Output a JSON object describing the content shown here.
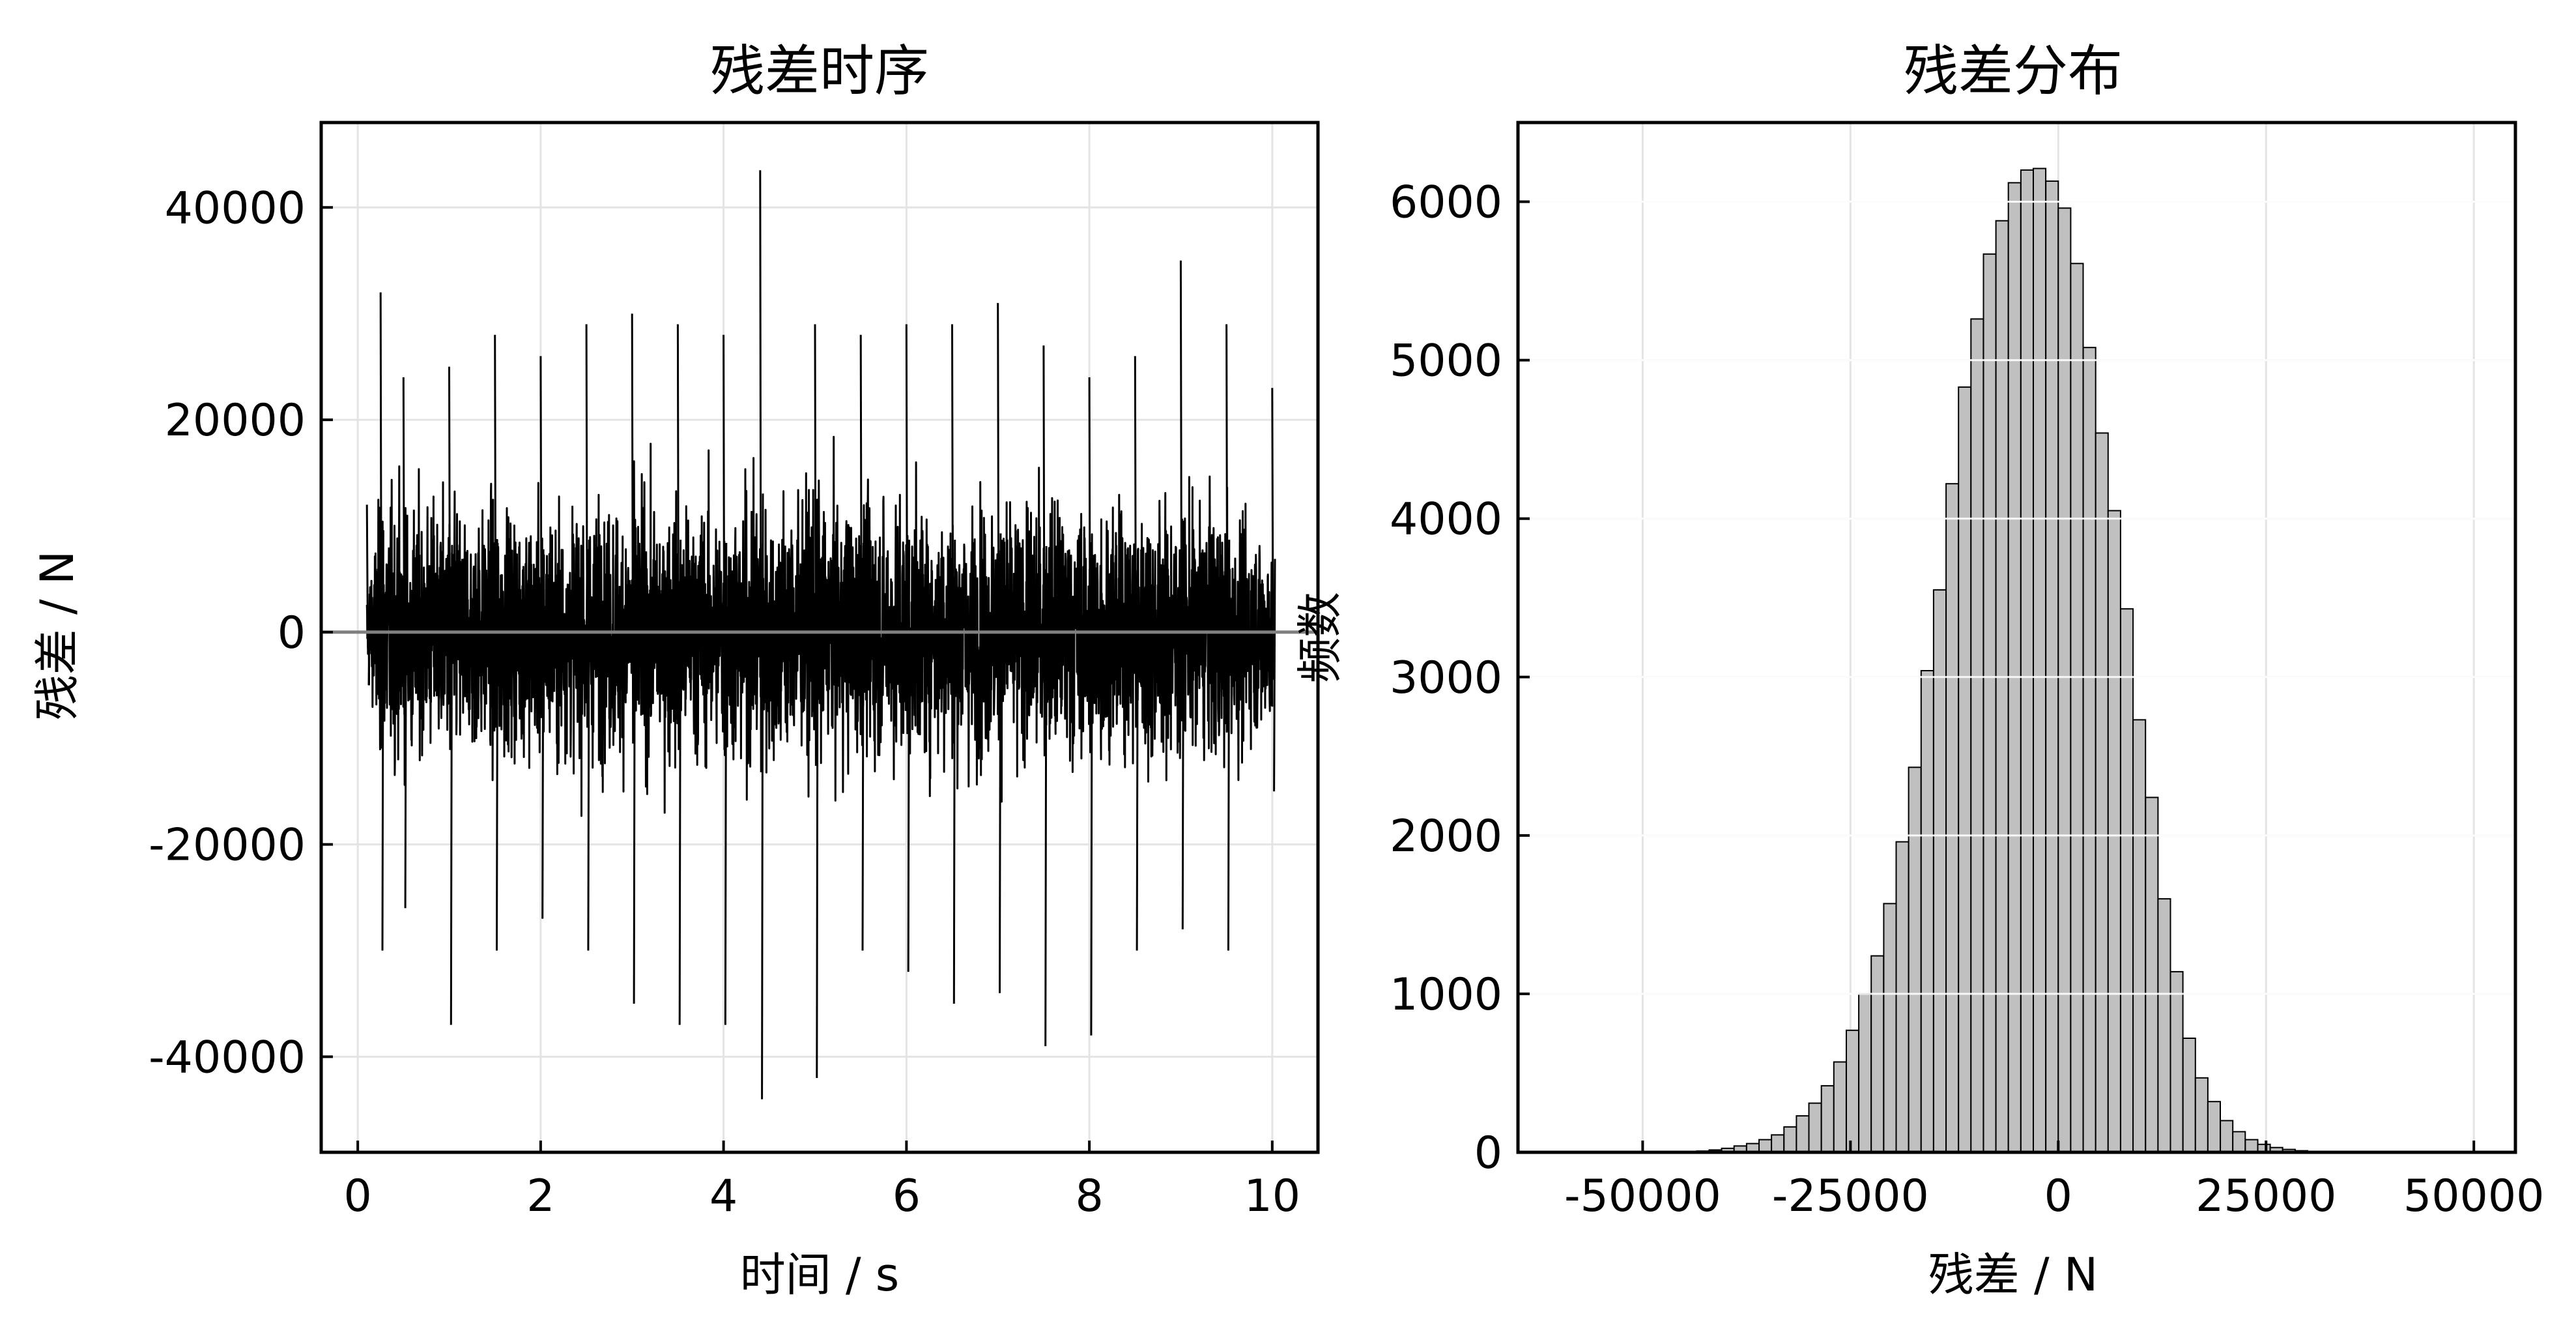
{
  "chart_data": [
    {
      "type": "line",
      "title": "残差时序",
      "xlabel": "时间 / s",
      "ylabel": "残差 / N",
      "xlim": [
        -0.4,
        10.5
      ],
      "ylim": [
        -49000,
        48000
      ],
      "xticks": [
        0,
        2,
        4,
        6,
        8,
        10
      ],
      "xtick_labels": [
        "0",
        "2",
        "4",
        "6",
        "8",
        "10"
      ],
      "yticks": [
        40000,
        20000,
        0,
        -20000,
        -40000
      ],
      "ytick_labels": [
        "40000",
        "20000",
        "0",
        "-20000",
        "-40000"
      ],
      "grid": true,
      "reference_line": 0,
      "line_color": "#000000",
      "reference_color": "#808080",
      "series": [
        {
          "x_start": 0.1,
          "x_end": 10.0,
          "envelope_x": [
            0.1,
            0.25,
            0.5,
            1,
            1.5,
            2,
            2.5,
            3,
            3.5,
            4,
            4.4,
            5,
            5.5,
            6,
            6.5,
            7,
            7.5,
            8,
            8.5,
            9,
            9.5,
            10
          ],
          "envelope_upper": [
            12000,
            32000,
            24000,
            25000,
            28000,
            26000,
            29000,
            30000,
            29000,
            28000,
            43500,
            29000,
            28000,
            29000,
            29000,
            31000,
            27000,
            24000,
            26000,
            35000,
            29000,
            23000
          ],
          "envelope_lower": [
            -5000,
            -30000,
            -26000,
            -37000,
            -30000,
            -27000,
            -30000,
            -35000,
            -37000,
            -37000,
            -44000,
            -42000,
            -30000,
            -32000,
            -35000,
            -34000,
            -39000,
            -38000,
            -30000,
            -28000,
            -30000,
            -15000
          ],
          "typical_upper": [
            8000,
            19000,
            18000,
            17000,
            17000,
            17000,
            17000,
            18000,
            18000,
            18000,
            20000,
            18000,
            18000,
            18000,
            18000,
            18000,
            18000,
            17000,
            17000,
            17000,
            17000,
            14000
          ],
          "typical_lower": [
            -4000,
            -17000,
            -17000,
            -17000,
            -17000,
            -17000,
            -17000,
            -17000,
            -17000,
            -17000,
            -19000,
            -18000,
            -17000,
            -17000,
            -17000,
            -17000,
            -17000,
            -17000,
            -17000,
            -17000,
            -17000,
            -13000
          ]
        }
      ]
    },
    {
      "type": "bar",
      "title": "残差分布",
      "xlabel": "残差 / N",
      "ylabel": "频数",
      "xlim": [
        -65000,
        55000
      ],
      "ylim": [
        0,
        6500
      ],
      "xticks": [
        -50000,
        -25000,
        0,
        25000,
        50000
      ],
      "xtick_labels": [
        "-50000",
        "-25000",
        "0",
        "25000",
        "50000"
      ],
      "yticks": [
        0,
        1000,
        2000,
        3000,
        4000,
        5000,
        6000
      ],
      "ytick_labels": [
        "0",
        "1000",
        "2000",
        "3000",
        "4000",
        "5000",
        "6000"
      ],
      "grid": true,
      "bar_color": "#c0c0c0",
      "edge_color": "#000000",
      "bin_width": 1500,
      "bin_start": -45000,
      "counts": [
        5,
        8,
        15,
        25,
        40,
        55,
        80,
        110,
        160,
        230,
        310,
        420,
        570,
        770,
        1000,
        1240,
        1570,
        1960,
        2430,
        3040,
        3550,
        4220,
        4830,
        5260,
        5670,
        5880,
        6120,
        6200,
        6210,
        6130,
        5960,
        5610,
        5080,
        4540,
        4050,
        3430,
        2730,
        2240,
        1600,
        1140,
        720,
        470,
        320,
        200,
        130,
        80,
        50,
        30,
        18,
        10
      ]
    }
  ]
}
